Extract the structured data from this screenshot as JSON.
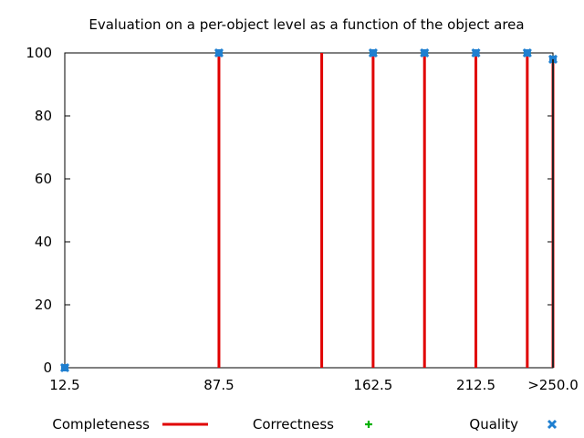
{
  "chart_data": {
    "type": "bar",
    "title": "Evaluation on a per-object level as a function of the object area",
    "xlabel": "",
    "ylabel": "",
    "x_ticks": [
      12.5,
      87.5,
      162.5,
      212.5,
      250.0
    ],
    "x_tick_labels": [
      "12.5",
      "87.5",
      "162.5",
      "212.5",
      ">250.0"
    ],
    "xlim": [
      12.5,
      250.0
    ],
    "ylim": [
      0,
      100
    ],
    "y_ticks": [
      0,
      20,
      40,
      60,
      80,
      100
    ],
    "y_tick_labels": [
      "0",
      "20",
      "40",
      "60",
      "80",
      "100"
    ],
    "grid": false,
    "legend_position": "bottom",
    "series": [
      {
        "name": "Completeness",
        "style": "impulses",
        "color": "#e00000",
        "points": [
          {
            "x": 87.5,
            "y": 100
          },
          {
            "x": 137.5,
            "y": 100
          },
          {
            "x": 162.5,
            "y": 100
          },
          {
            "x": 187.5,
            "y": 100
          },
          {
            "x": 212.5,
            "y": 100
          },
          {
            "x": 237.5,
            "y": 100
          },
          {
            "x": 250.0,
            "y": 98
          }
        ]
      },
      {
        "name": "Correctness",
        "style": "points",
        "color": "#00b000",
        "points": [
          {
            "x": 87.5,
            "y": 100
          },
          {
            "x": 162.5,
            "y": 100
          },
          {
            "x": 187.5,
            "y": 100
          },
          {
            "x": 212.5,
            "y": 100
          },
          {
            "x": 237.5,
            "y": 100
          },
          {
            "x": 250.0,
            "y": 98
          }
        ]
      },
      {
        "name": "Quality",
        "style": "points",
        "color": "#1f7fd0",
        "points": [
          {
            "x": 12.5,
            "y": 0
          },
          {
            "x": 87.5,
            "y": 100
          },
          {
            "x": 162.5,
            "y": 100
          },
          {
            "x": 187.5,
            "y": 100
          },
          {
            "x": 212.5,
            "y": 100
          },
          {
            "x": 237.5,
            "y": 100
          },
          {
            "x": 250.0,
            "y": 98
          }
        ]
      }
    ]
  }
}
